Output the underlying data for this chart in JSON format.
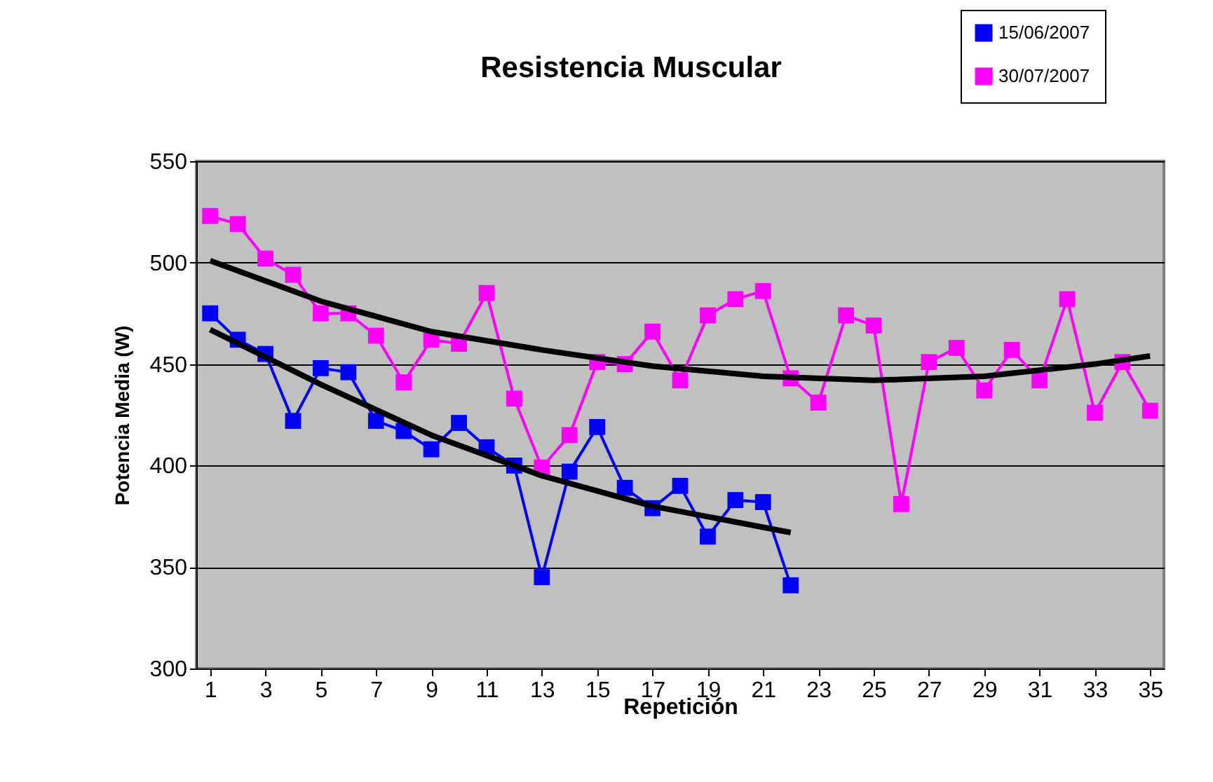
{
  "chart_data": {
    "type": "line",
    "title": "Resistencia Muscular",
    "xlabel": "Repetición",
    "ylabel": "Potencia Media (W)",
    "xlim": [
      0.5,
      35.5
    ],
    "xticks": [
      1,
      3,
      5,
      7,
      9,
      11,
      13,
      15,
      17,
      19,
      21,
      23,
      25,
      27,
      29,
      31,
      33,
      35
    ],
    "ylim": [
      300,
      550
    ],
    "yticks": [
      300,
      350,
      400,
      450,
      500,
      550
    ],
    "grid": "y",
    "legend": "top right",
    "marker": "square",
    "line_style": "solid",
    "series": [
      {
        "name": "15/06/2007",
        "color": "#0000ff",
        "x": [
          1,
          2,
          3,
          4,
          5,
          6,
          7,
          8,
          9,
          10,
          11,
          12,
          13,
          14,
          15,
          16,
          17,
          18,
          19,
          20,
          21,
          22
        ],
        "values": [
          475,
          462,
          455,
          422,
          448,
          446,
          422,
          417,
          408,
          421,
          409,
          400,
          345,
          397,
          419,
          389,
          379,
          390,
          365,
          383,
          382,
          341
        ]
      },
      {
        "name": "30/07/2007",
        "color": "#ff00ff",
        "x": [
          1,
          2,
          3,
          4,
          5,
          6,
          7,
          8,
          9,
          10,
          11,
          12,
          13,
          14,
          15,
          16,
          17,
          18,
          19,
          20,
          21,
          22,
          23,
          24,
          25,
          26,
          27,
          28,
          29,
          30,
          31,
          32,
          33,
          34,
          35
        ],
        "values": [
          523,
          519,
          502,
          494,
          475,
          475,
          464,
          441,
          462,
          460,
          485,
          433,
          399,
          415,
          451,
          450,
          466,
          442,
          474,
          482,
          486,
          443,
          431,
          474,
          469,
          381,
          451,
          458,
          437,
          457,
          442,
          482,
          426,
          451,
          427
        ]
      },
      {
        "type": "line",
        "color": "#000000",
        "marker": "none",
        "x": [
          1,
          5,
          9,
          13,
          17,
          22
        ],
        "values": [
          467,
          440,
          415,
          395,
          380,
          367
        ]
      },
      {
        "type": "line",
        "color": "#000000",
        "marker": "none",
        "x": [
          1,
          5,
          9,
          13,
          17,
          21,
          25,
          29,
          33,
          35
        ],
        "values": [
          501,
          481,
          466,
          457,
          449,
          444,
          442,
          444,
          450,
          454
        ]
      }
    ]
  }
}
